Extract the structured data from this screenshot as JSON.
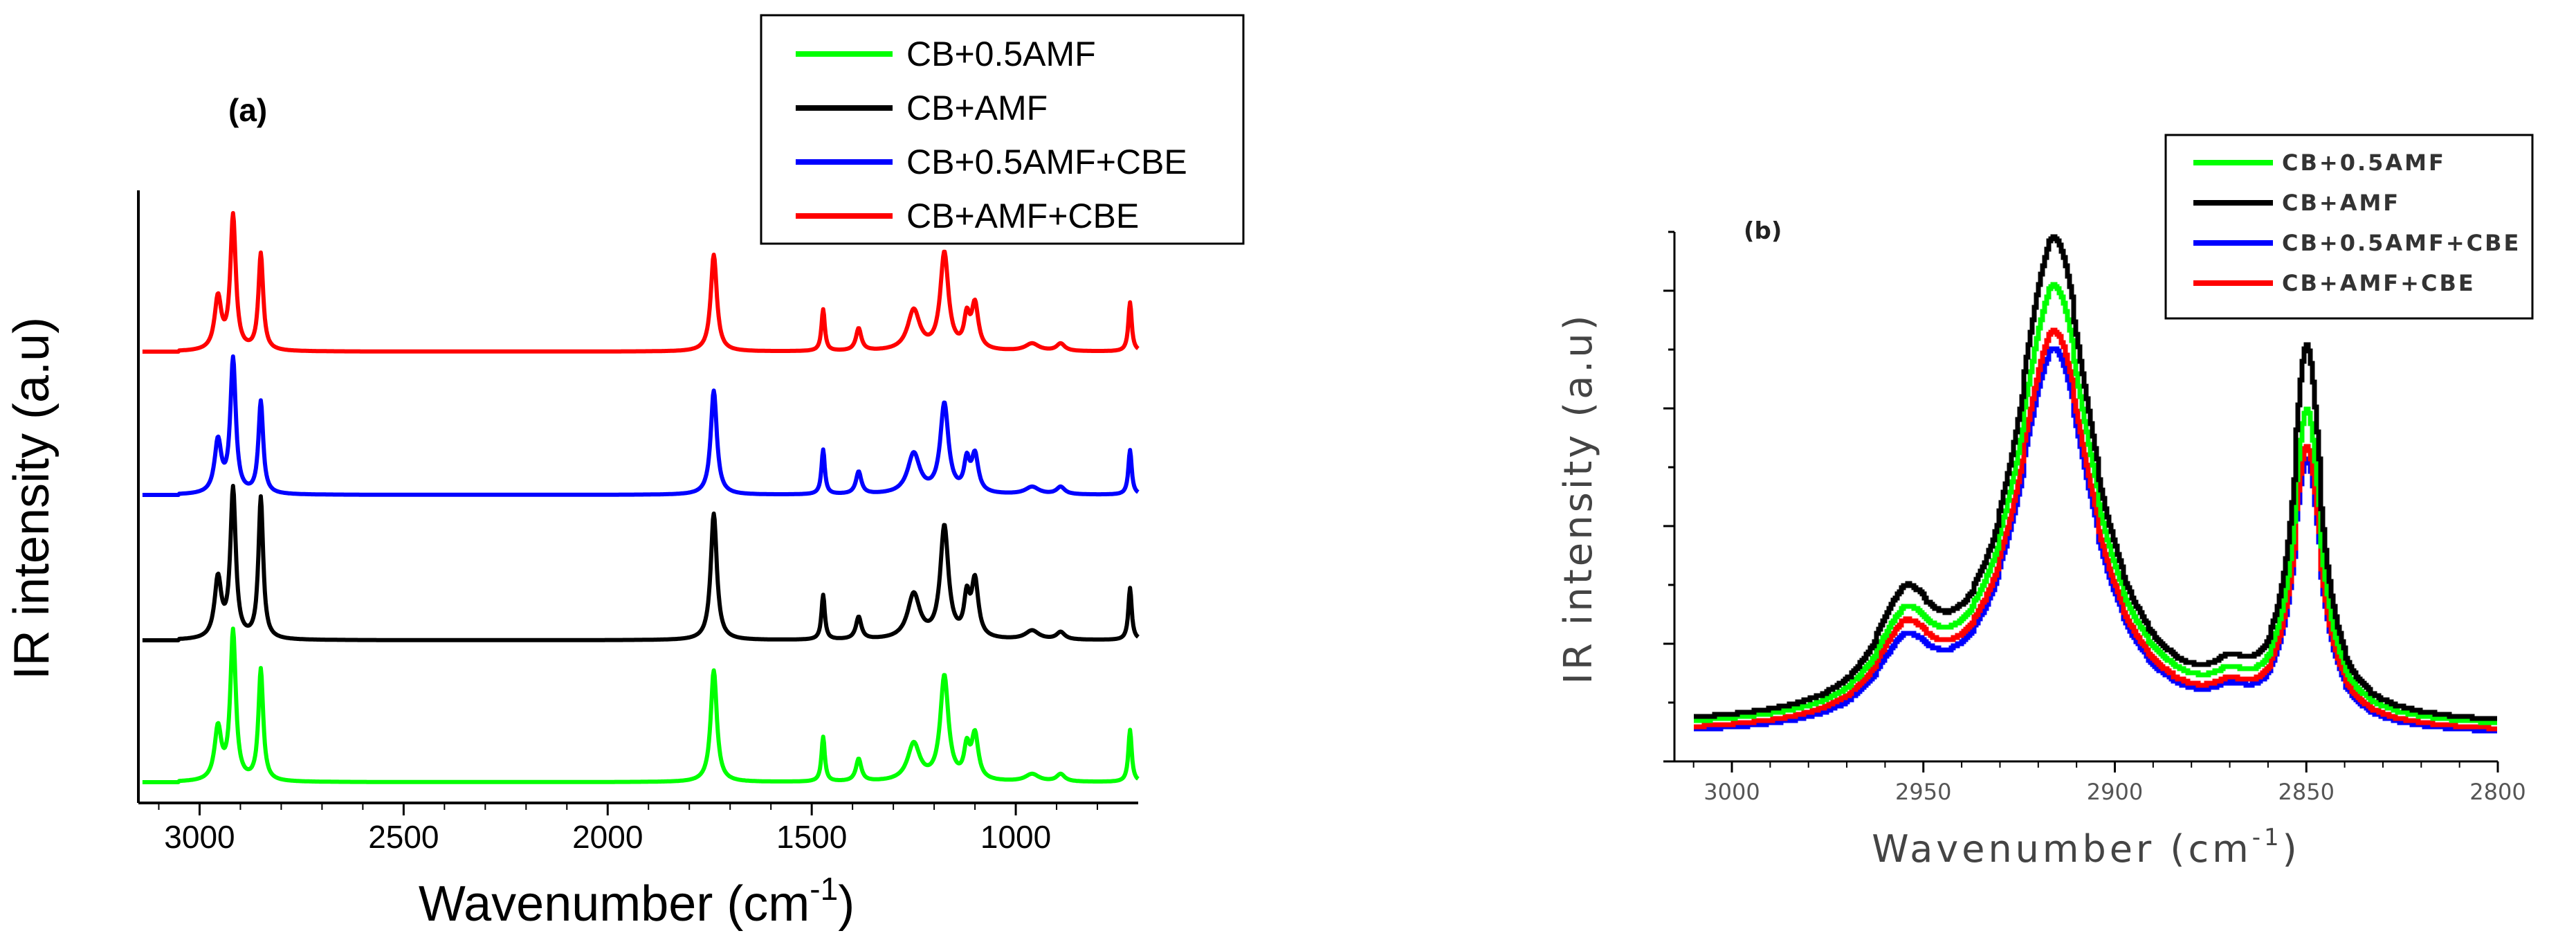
{
  "chart_data": [
    {
      "panel": "(a)",
      "type": "line",
      "xlabel": "Wavenumber (cm",
      "xlabel_sup": "-1",
      "xlabel_close": ")",
      "ylabel": "IR intensity (a.u)",
      "x_reversed": true,
      "xlim": [
        3150,
        700
      ],
      "x_ticks": [
        3000,
        2500,
        2000,
        1500,
        1000
      ],
      "x_tick_labels": [
        "3000",
        "2500",
        "2000",
        "1500",
        "1000"
      ],
      "y_ticks_visible": false,
      "legend_position": "top-right",
      "peaks_cm": [
        2955,
        2918,
        2850,
        1740,
        1472,
        1385,
        1250,
        1175,
        1120,
        1100,
        960,
        890,
        720
      ],
      "series": [
        {
          "name": "CB+0.5AMF",
          "color": "#00ff00",
          "offset": 0,
          "peak_rel": [
            0.35,
            1.0,
            0.75,
            0.75,
            0.3,
            0.15,
            0.25,
            0.7,
            0.2,
            0.3,
            0.05,
            0.05,
            0.35
          ]
        },
        {
          "name": "CB+AMF",
          "color": "#000000",
          "offset": 1,
          "peak_rel": [
            0.4,
            1.0,
            0.95,
            0.85,
            0.3,
            0.15,
            0.3,
            0.75,
            0.25,
            0.38,
            0.06,
            0.05,
            0.35
          ]
        },
        {
          "name": "CB+0.5AMF+CBE",
          "color": "#0000ff",
          "offset": 2,
          "peak_rel": [
            0.35,
            0.9,
            0.62,
            0.7,
            0.3,
            0.15,
            0.27,
            0.6,
            0.2,
            0.25,
            0.05,
            0.05,
            0.3
          ]
        },
        {
          "name": "CB+AMF+CBE",
          "color": "#ff0000",
          "offset": 3,
          "peak_rel": [
            0.35,
            0.9,
            0.65,
            0.65,
            0.28,
            0.15,
            0.27,
            0.65,
            0.2,
            0.3,
            0.05,
            0.05,
            0.33
          ]
        }
      ]
    },
    {
      "panel": "(b)",
      "type": "line",
      "xlabel": "Wavenumber (cm",
      "xlabel_sup": "-1",
      "xlabel_close": ")",
      "ylabel": "IR intensity  (a.u)",
      "x_reversed": true,
      "xlim": [
        3015,
        2800
      ],
      "x_ticks": [
        3000,
        2950,
        2900,
        2850,
        2800
      ],
      "x_tick_labels": [
        "3000",
        "2950",
        "2900",
        "2850",
        "2800"
      ],
      "y_ticks_visible": false,
      "legend_position": "top-right",
      "series": [
        {
          "name": "CB+0.5AMF",
          "color": "#00ff00",
          "peak_2955": 0.17,
          "peak_2916": 0.88,
          "peak_2850": 0.61,
          "base": 0.035
        },
        {
          "name": "CB+AMF",
          "color": "#000000",
          "peak_2955": 0.2,
          "peak_2916": 0.97,
          "peak_2850": 0.73,
          "base": 0.04
        },
        {
          "name": "CB+0.5AMF+CBE",
          "color": "#0000ff",
          "peak_2955": 0.14,
          "peak_2916": 0.77,
          "peak_2850": 0.53,
          "base": 0.02
        },
        {
          "name": "CB+AMF+CBE",
          "color": "#ff0000",
          "peak_2955": 0.16,
          "peak_2916": 0.8,
          "peak_2850": 0.55,
          "base": 0.025
        }
      ]
    }
  ]
}
